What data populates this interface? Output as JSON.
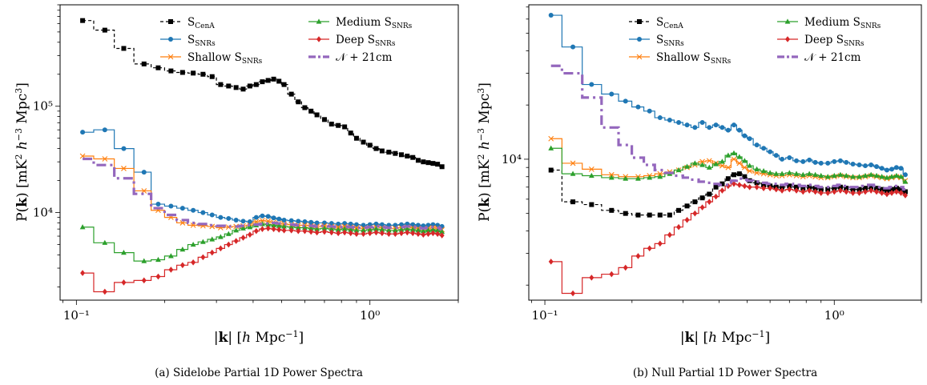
{
  "figure": {
    "panels": [
      {
        "caption": "(a) Sidelobe Partial 1D Power Spectra",
        "xlabel": "|k| [h Mpc⁻¹]",
        "ylabel": "P(k) [mK² h⁻³ Mpc³]",
        "xticks": [
          {
            "value": 0.1,
            "label": "10⁻¹"
          },
          {
            "value": 1.0,
            "label": "10⁰"
          }
        ],
        "yticks": [
          {
            "value": 10000,
            "label": "10⁴"
          },
          {
            "value": 100000,
            "label": "10⁵"
          }
        ]
      },
      {
        "caption": "(b) Null Partial 1D Power Spectra",
        "xlabel": "|k| [h Mpc⁻¹]",
        "ylabel": "P(k) [mK² h⁻³ Mpc³]",
        "xticks": [
          {
            "value": 0.1,
            "label": "10⁻¹"
          },
          {
            "value": 1.0,
            "label": "10⁰"
          }
        ],
        "yticks": [
          {
            "value": 10000,
            "label": "10⁴"
          }
        ]
      }
    ],
    "legend": [
      {
        "main": "S",
        "sub": "CenA",
        "color": "#000000",
        "marker": "square",
        "dash": "dashed"
      },
      {
        "main": "S",
        "sub": "SNRs",
        "color": "#1f77b4",
        "marker": "circle",
        "dash": "solid"
      },
      {
        "prefix": "Shallow ",
        "main": "S",
        "sub": "SNRs",
        "color": "#ff7f0e",
        "marker": "x",
        "dash": "solid"
      },
      {
        "prefix": "Medium ",
        "main": "S",
        "sub": "SNRs",
        "color": "#2ca02c",
        "marker": "triangle",
        "dash": "solid"
      },
      {
        "prefix": "Deep ",
        "main": "S",
        "sub": "SNRs",
        "color": "#d62728",
        "marker": "diamond",
        "dash": "solid"
      },
      {
        "main": "𝒩 + 21cm",
        "sub": "",
        "color": "#9467bd",
        "marker": "none",
        "dash": "dashdot"
      }
    ]
  },
  "chart_data": [
    {
      "type": "line",
      "title": "(a) Sidelobe Partial 1D Power Spectra",
      "xlabel": "|k| [h Mpc⁻¹]",
      "ylabel": "P(k) [mK² h⁻³ Mpc³]",
      "xscale": "log",
      "yscale": "log",
      "xlim": [
        0.088,
        2.0
      ],
      "ylim": [
        1500,
        900000
      ],
      "legend_position": "top-right",
      "x": [
        0.105,
        0.125,
        0.145,
        0.17,
        0.19,
        0.21,
        0.23,
        0.25,
        0.27,
        0.29,
        0.31,
        0.33,
        0.35,
        0.37,
        0.39,
        0.41,
        0.43,
        0.45,
        0.47,
        0.49,
        0.51,
        0.54,
        0.57,
        0.6,
        0.63,
        0.66,
        0.7,
        0.74,
        0.78,
        0.82,
        0.86,
        0.9,
        0.95,
        1.0,
        1.05,
        1.1,
        1.16,
        1.22,
        1.28,
        1.34,
        1.4,
        1.46,
        1.52,
        1.58,
        1.64,
        1.7,
        1.76
      ],
      "series": [
        {
          "name": "S_CenA",
          "color": "#000000",
          "marker": "square",
          "dash": "dashed",
          "values": [
            640000,
            520000,
            350000,
            250000,
            230000,
            215000,
            208000,
            205000,
            200000,
            190000,
            160000,
            155000,
            150000,
            145000,
            155000,
            160000,
            170000,
            175000,
            180000,
            172000,
            160000,
            130000,
            110000,
            97000,
            90000,
            83000,
            75000,
            68000,
            66000,
            64000,
            56000,
            50000,
            46000,
            43000,
            40000,
            38000,
            37000,
            36000,
            35000,
            34000,
            33000,
            31000,
            30000,
            29500,
            29000,
            28500,
            27000
          ]
        },
        {
          "name": "S_SNRs",
          "color": "#1f77b4",
          "marker": "circle",
          "dash": "solid",
          "values": [
            57000,
            60000,
            40000,
            24000,
            12000,
            11500,
            11000,
            10500,
            10000,
            9500,
            9000,
            8800,
            8500,
            8300,
            8200,
            9000,
            9300,
            9200,
            8900,
            8700,
            8500,
            8400,
            8300,
            8200,
            8100,
            8000,
            8000,
            7900,
            7800,
            7900,
            7800,
            7700,
            7600,
            7700,
            7800,
            7700,
            7600,
            7600,
            7700,
            7800,
            7700,
            7600,
            7500,
            7600,
            7700,
            7600,
            7400
          ]
        },
        {
          "name": "Shallow S_SNRs",
          "color": "#ff7f0e",
          "marker": "x",
          "dash": "solid",
          "values": [
            34000,
            32000,
            26000,
            16000,
            10500,
            9000,
            8000,
            7600,
            7500,
            7400,
            7200,
            7300,
            7400,
            7500,
            7600,
            8200,
            8400,
            8300,
            8100,
            7900,
            7800,
            7700,
            7600,
            7600,
            7500,
            7400,
            7500,
            7400,
            7300,
            7400,
            7300,
            7200,
            7100,
            7200,
            7300,
            7200,
            7100,
            7100,
            7200,
            7300,
            7200,
            7100,
            7000,
            7100,
            7200,
            7100,
            6900
          ]
        },
        {
          "name": "Medium S_SNRs",
          "color": "#2ca02c",
          "marker": "triangle",
          "dash": "solid",
          "values": [
            7300,
            5200,
            4200,
            3500,
            3600,
            3900,
            4500,
            5000,
            5300,
            5600,
            5900,
            6300,
            6800,
            7100,
            7300,
            7600,
            7800,
            7700,
            7600,
            7500,
            7400,
            7300,
            7200,
            7200,
            7100,
            7000,
            7100,
            7000,
            6900,
            7000,
            6900,
            6800,
            6800,
            6900,
            7000,
            6900,
            6800,
            6800,
            6900,
            7000,
            6900,
            6800,
            6700,
            6800,
            6900,
            6800,
            6600
          ]
        },
        {
          "name": "Deep S_SNRs",
          "color": "#d62728",
          "marker": "diamond",
          "dash": "solid",
          "values": [
            2700,
            1800,
            2200,
            2300,
            2500,
            2900,
            3200,
            3400,
            3800,
            4200,
            4600,
            5000,
            5400,
            5800,
            6200,
            6700,
            7000,
            7100,
            7000,
            6900,
            6800,
            6800,
            6700,
            6700,
            6600,
            6500,
            6600,
            6500,
            6400,
            6500,
            6400,
            6300,
            6300,
            6400,
            6500,
            6400,
            6300,
            6300,
            6400,
            6500,
            6400,
            6300,
            6200,
            6300,
            6400,
            6300,
            6100
          ]
        },
        {
          "name": "𝒩 + 21cm",
          "color": "#9467bd",
          "marker": "none",
          "dash": "dashdot",
          "values": [
            32000,
            28000,
            21000,
            15000,
            11000,
            9500,
            8500,
            8000,
            7800,
            7600,
            7500,
            7400,
            7400,
            7500,
            7600,
            7700,
            7800,
            7900,
            8000,
            7900,
            7800,
            7700,
            7600,
            7500,
            7500,
            7400,
            7500,
            7400,
            7300,
            7400,
            7300,
            7200,
            7200,
            7300,
            7400,
            7300,
            7200,
            7200,
            7300,
            7400,
            7300,
            7200,
            7100,
            7200,
            7300,
            7200,
            7000
          ]
        }
      ]
    },
    {
      "type": "line",
      "title": "(b) Null Partial 1D Power Spectra",
      "xlabel": "|k| [h Mpc⁻¹]",
      "ylabel": "P(k) [mK² h⁻³ Mpc³]",
      "xscale": "log",
      "yscale": "log",
      "xlim": [
        0.088,
        2.0
      ],
      "ylim": [
        1650,
        72000
      ],
      "legend_position": "top-right",
      "x": [
        0.105,
        0.125,
        0.145,
        0.17,
        0.19,
        0.21,
        0.23,
        0.25,
        0.27,
        0.29,
        0.31,
        0.33,
        0.35,
        0.37,
        0.39,
        0.41,
        0.43,
        0.45,
        0.47,
        0.49,
        0.51,
        0.54,
        0.57,
        0.6,
        0.63,
        0.66,
        0.7,
        0.74,
        0.78,
        0.82,
        0.86,
        0.9,
        0.95,
        1.0,
        1.05,
        1.1,
        1.16,
        1.22,
        1.28,
        1.34,
        1.4,
        1.46,
        1.52,
        1.58,
        1.64,
        1.7,
        1.76
      ],
      "series": [
        {
          "name": "S_CenA",
          "color": "#000000",
          "marker": "square",
          "dash": "dashed",
          "values": [
            8700,
            5800,
            5600,
            5200,
            5000,
            4900,
            4900,
            4900,
            4900,
            5200,
            5500,
            5800,
            6100,
            6400,
            7000,
            7300,
            7800,
            8200,
            8300,
            8000,
            7600,
            7400,
            7200,
            7100,
            7000,
            7000,
            7100,
            7000,
            6900,
            7000,
            6900,
            6800,
            6800,
            6900,
            7000,
            6900,
            6800,
            6800,
            6900,
            7000,
            6900,
            6800,
            6700,
            6800,
            6900,
            6800,
            6600
          ]
        },
        {
          "name": "S_SNRs",
          "color": "#1f77b4",
          "marker": "circle",
          "dash": "solid",
          "values": [
            63000,
            42000,
            26000,
            23000,
            21000,
            19500,
            18500,
            17000,
            16500,
            16000,
            15500,
            15000,
            16000,
            15000,
            15500,
            15000,
            14500,
            15500,
            14500,
            13500,
            13000,
            12000,
            11500,
            11000,
            10500,
            10000,
            10200,
            9800,
            9700,
            9900,
            9600,
            9500,
            9500,
            9700,
            9800,
            9600,
            9400,
            9300,
            9200,
            9300,
            9100,
            8900,
            8700,
            8800,
            9000,
            8900,
            8200
          ]
        },
        {
          "name": "Shallow S_SNRs",
          "color": "#ff7f0e",
          "marker": "x",
          "dash": "solid",
          "values": [
            13000,
            9500,
            8800,
            8200,
            8000,
            8000,
            8100,
            8300,
            8500,
            8700,
            9000,
            9300,
            9700,
            9800,
            9500,
            9200,
            9000,
            10000,
            9500,
            9000,
            8600,
            8400,
            8300,
            8200,
            8100,
            8100,
            8200,
            8100,
            8000,
            8100,
            8000,
            7900,
            7900,
            8000,
            8100,
            8000,
            7900,
            7900,
            8000,
            8100,
            8000,
            7900,
            7800,
            7900,
            8000,
            7900,
            7600
          ]
        },
        {
          "name": "Medium S_SNRs",
          "color": "#2ca02c",
          "marker": "triangle",
          "dash": "solid",
          "values": [
            11500,
            8300,
            8100,
            7900,
            7800,
            7800,
            7900,
            8000,
            8300,
            8700,
            9100,
            9500,
            9300,
            9000,
            9400,
            9700,
            10500,
            10800,
            10300,
            9800,
            9200,
            8800,
            8600,
            8400,
            8300,
            8300,
            8400,
            8300,
            8200,
            8300,
            8200,
            8100,
            8000,
            8100,
            8200,
            8100,
            8000,
            8000,
            8100,
            8200,
            8100,
            8000,
            7900,
            8000,
            8100,
            8000,
            7500
          ]
        },
        {
          "name": "Deep S_SNRs",
          "color": "#d62728",
          "marker": "diamond",
          "dash": "solid",
          "values": [
            2700,
            1800,
            2200,
            2300,
            2500,
            2900,
            3200,
            3400,
            3800,
            4200,
            4600,
            5000,
            5400,
            5800,
            6200,
            6700,
            7100,
            7300,
            7200,
            7100,
            7000,
            7000,
            6900,
            6900,
            6800,
            6700,
            6800,
            6700,
            6600,
            6700,
            6600,
            6500,
            6500,
            6600,
            6700,
            6600,
            6500,
            6500,
            6600,
            6700,
            6600,
            6500,
            6400,
            6500,
            6600,
            6500,
            6300
          ]
        },
        {
          "name": "𝒩 + 21cm",
          "color": "#9467bd",
          "marker": "none",
          "dash": "dashdot",
          "values": [
            33000,
            30000,
            22000,
            15000,
            12000,
            10200,
            9300,
            8700,
            8400,
            8100,
            7900,
            7700,
            7500,
            7400,
            7300,
            7200,
            7200,
            7600,
            7800,
            7700,
            7600,
            7500,
            7400,
            7300,
            7300,
            7200,
            7300,
            7200,
            7100,
            7200,
            7100,
            7000,
            7000,
            7100,
            7200,
            7100,
            7000,
            7000,
            7100,
            7200,
            7100,
            7000,
            6900,
            7000,
            7100,
            7000,
            6800
          ]
        }
      ]
    }
  ]
}
